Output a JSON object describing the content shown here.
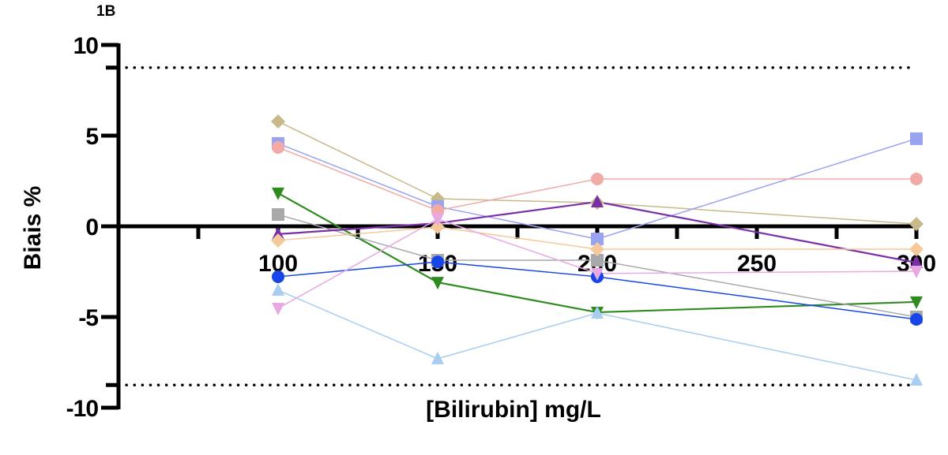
{
  "panel_label": "1B",
  "chart_data": {
    "type": "line",
    "title": "1B",
    "xlabel": "[Bilirubin] mg/L",
    "ylabel": "Biais %",
    "x": [
      100,
      150,
      200,
      300
    ],
    "xlim": [
      50,
      300
    ],
    "ylim": [
      -10,
      10
    ],
    "x_ticks": [
      100,
      150,
      200,
      250,
      300
    ],
    "x_minor_ticks": [
      75,
      125,
      175,
      225,
      275
    ],
    "y_ticks": [
      10,
      5,
      0,
      -5,
      -10
    ],
    "reference_lines": [
      8.75,
      -8.75
    ],
    "reference_line_style": "dotted",
    "grid": false,
    "legend": "none",
    "series": [
      {
        "name": "tan-diamond",
        "color": "#c8b98a",
        "marker": "diamond",
        "values": [
          5.78,
          1.52,
          1.3,
          0.13
        ]
      },
      {
        "name": "blue-square",
        "color": "#9aa3f0",
        "marker": "square",
        "values": [
          4.57,
          1.09,
          -0.7,
          4.83
        ]
      },
      {
        "name": "pink-circle",
        "color": "#f2aaa6",
        "marker": "circle",
        "values": [
          4.35,
          0.87,
          2.61,
          2.61
        ]
      },
      {
        "name": "green-down-triangle",
        "color": "#2e8b1f",
        "marker": "triangle-down",
        "values": [
          1.83,
          -3.09,
          -4.74,
          -4.17
        ]
      },
      {
        "name": "gray-square",
        "color": "#a9a9ad",
        "marker": "square",
        "values": [
          0.65,
          -1.87,
          -1.87,
          -5.0
        ]
      },
      {
        "name": "purple-triangle",
        "color": "#7b2fa6",
        "marker": "triangle-up",
        "values": [
          -0.43,
          0.17,
          1.35,
          -2.0
        ]
      },
      {
        "name": "orange-diamond",
        "color": "#f5c99a",
        "marker": "diamond",
        "values": [
          -0.78,
          -0.04,
          -1.26,
          -1.26
        ]
      },
      {
        "name": "blue-circle",
        "color": "#1746e8",
        "marker": "circle",
        "values": [
          -2.78,
          -1.96,
          -2.78,
          -5.13
        ]
      },
      {
        "name": "lightblue-triangle",
        "color": "#a9cdf0",
        "marker": "triangle-up",
        "values": [
          -3.52,
          -7.3,
          -4.78,
          -8.48
        ]
      },
      {
        "name": "pink-down-triangle",
        "color": "#e8a8e4",
        "marker": "triangle-down",
        "values": [
          -4.52,
          0.4,
          -2.6,
          -2.48
        ]
      }
    ]
  }
}
